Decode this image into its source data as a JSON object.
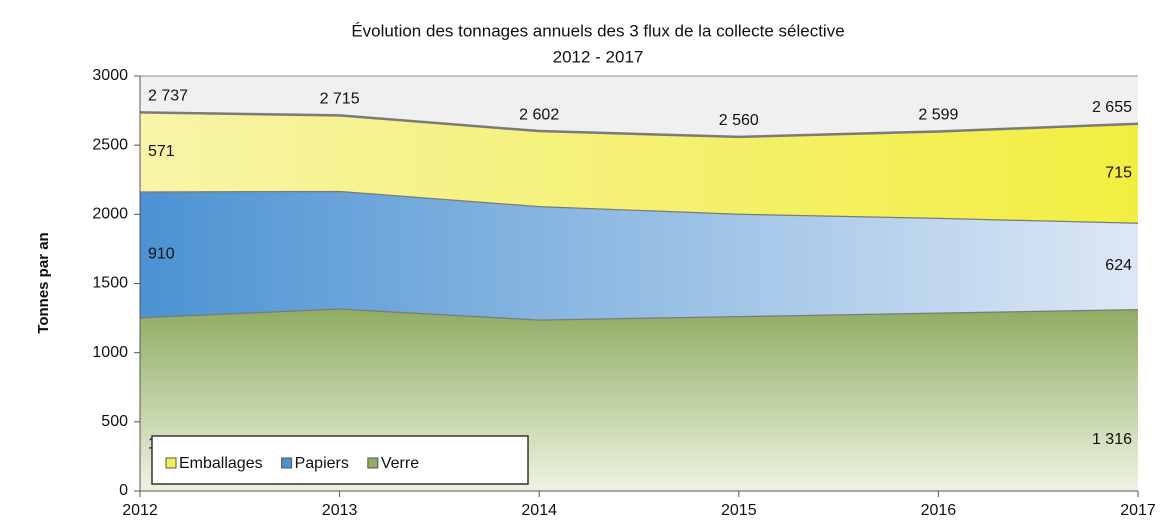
{
  "chart_data": {
    "type": "stacked_area",
    "title": "Évolution des tonnages annuels des 3 flux de la collecte sélective",
    "subtitle": "2012 - 2017",
    "y_label": "Tonnes par an",
    "x": [
      2012,
      2013,
      2014,
      2015,
      2016,
      2017
    ],
    "series": [
      {
        "name": "Verre",
        "color": "#8fac62",
        "values": [
          1256,
          1320,
          1240,
          1265,
          1290,
          1316
        ],
        "value_labels": [
          "1256",
          null,
          null,
          null,
          null,
          "1 316"
        ]
      },
      {
        "name": "Papiers",
        "color": "#4b92d2",
        "values": [
          910,
          850,
          820,
          740,
          685,
          624
        ],
        "value_labels": [
          "910",
          null,
          null,
          null,
          null,
          "624"
        ]
      },
      {
        "name": "Emballages",
        "color": "#f2ee55",
        "values": [
          571,
          545,
          542,
          555,
          624,
          715
        ],
        "value_labels": [
          "571",
          null,
          null,
          null,
          null,
          "715"
        ]
      }
    ],
    "totals": [
      2737,
      2715,
      2602,
      2560,
      2599,
      2655
    ],
    "total_labels": [
      "2 737",
      "2 715",
      "2 602",
      "2 560",
      "2 599",
      "2 655"
    ],
    "xlim": [
      2012,
      2017
    ],
    "xticks": [
      2012,
      2013,
      2014,
      2015,
      2016,
      2017
    ],
    "ylim": [
      0,
      3000
    ],
    "yticks": [
      0,
      500,
      1000,
      1500,
      2000,
      2500,
      3000
    ],
    "grid": true,
    "legend": "bottom-left"
  }
}
